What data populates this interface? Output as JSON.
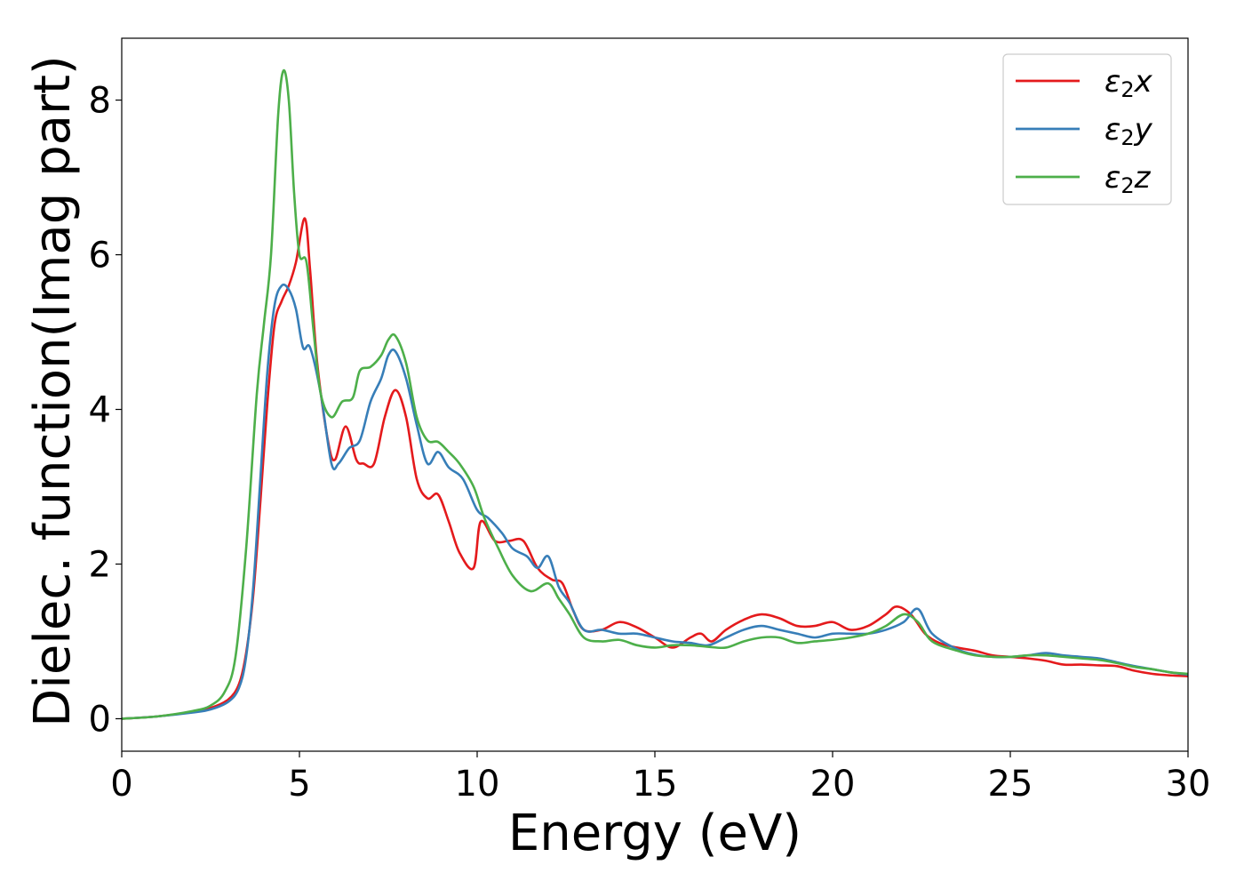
{
  "chart_data": {
    "type": "line",
    "title": "",
    "xlabel": "Energy (eV)",
    "ylabel": "Dielec. function(Imag part)",
    "xlim": [
      0,
      30
    ],
    "ylim": [
      -0.42,
      8.8
    ],
    "xticks": [
      0,
      5,
      10,
      15,
      20,
      25,
      30
    ],
    "xtick_labels": [
      "0",
      "5",
      "10",
      "15",
      "20",
      "25",
      "30"
    ],
    "yticks": [
      0,
      2,
      4,
      6,
      8
    ],
    "ytick_labels": [
      "0",
      "2",
      "4",
      "6",
      "8"
    ],
    "grid": false,
    "legend_position": "top-right",
    "series": [
      {
        "name": "ε2x",
        "legend": {
          "base": "ε",
          "sub": "2",
          "suffix": "x"
        },
        "color": "#e41a1c",
        "x": [
          0,
          1,
          2,
          2.5,
          3.0,
          3.3,
          3.5,
          3.7,
          3.9,
          4.1,
          4.3,
          4.5,
          4.7,
          4.9,
          5.15,
          5.3,
          5.5,
          5.8,
          6.0,
          6.3,
          6.6,
          6.8,
          7.1,
          7.4,
          7.7,
          8.0,
          8.3,
          8.6,
          8.9,
          9.2,
          9.5,
          9.9,
          10.1,
          10.5,
          10.9,
          11.3,
          11.7,
          12.1,
          12.4,
          12.7,
          13.0,
          13.5,
          14.0,
          14.5,
          15.0,
          15.5,
          16.0,
          16.3,
          16.6,
          17.0,
          17.5,
          18.0,
          18.5,
          19.0,
          19.5,
          20.0,
          20.5,
          21.0,
          21.5,
          21.8,
          22.2,
          22.6,
          23.0,
          23.5,
          24.0,
          24.5,
          25.0,
          25.5,
          26.0,
          26.5,
          27.0,
          27.5,
          28.0,
          28.5,
          29.0,
          29.5,
          30.0
        ],
        "y": [
          0,
          0.03,
          0.09,
          0.14,
          0.25,
          0.45,
          0.85,
          1.6,
          2.8,
          4.1,
          5.1,
          5.4,
          5.6,
          5.9,
          6.47,
          5.8,
          4.6,
          3.6,
          3.35,
          3.78,
          3.35,
          3.3,
          3.3,
          3.9,
          4.25,
          3.9,
          3.1,
          2.85,
          2.9,
          2.55,
          2.15,
          1.95,
          2.55,
          2.3,
          2.3,
          2.3,
          1.95,
          1.8,
          1.75,
          1.4,
          1.15,
          1.15,
          1.25,
          1.18,
          1.05,
          0.92,
          1.05,
          1.1,
          1.0,
          1.15,
          1.28,
          1.35,
          1.3,
          1.2,
          1.2,
          1.25,
          1.15,
          1.2,
          1.35,
          1.45,
          1.35,
          1.1,
          0.98,
          0.92,
          0.88,
          0.82,
          0.8,
          0.78,
          0.75,
          0.7,
          0.7,
          0.69,
          0.68,
          0.62,
          0.58,
          0.56,
          0.55
        ]
      },
      {
        "name": "ε2y",
        "legend": {
          "base": "ε",
          "sub": "2",
          "suffix": "y"
        },
        "color": "#377eb8",
        "x": [
          0,
          1,
          2,
          2.5,
          3.0,
          3.3,
          3.5,
          3.7,
          3.9,
          4.1,
          4.3,
          4.5,
          4.7,
          4.9,
          5.1,
          5.3,
          5.6,
          5.9,
          6.1,
          6.4,
          6.7,
          7.0,
          7.3,
          7.5,
          7.7,
          8.0,
          8.3,
          8.6,
          8.9,
          9.2,
          9.6,
          10.0,
          10.3,
          10.7,
          11.0,
          11.4,
          11.7,
          12.0,
          12.3,
          12.6,
          13.0,
          13.5,
          14.0,
          14.5,
          15.0,
          15.5,
          16.0,
          16.5,
          17.0,
          17.5,
          18.0,
          18.5,
          19.0,
          19.5,
          20.0,
          20.5,
          21.0,
          21.5,
          22.0,
          22.4,
          22.8,
          23.5,
          24.0,
          24.5,
          25.0,
          25.5,
          26.0,
          26.5,
          27.0,
          27.5,
          28.0,
          28.5,
          29.0,
          29.5,
          30.0
        ],
        "y": [
          0,
          0.03,
          0.08,
          0.12,
          0.22,
          0.4,
          0.8,
          1.7,
          3.1,
          4.5,
          5.35,
          5.6,
          5.55,
          5.3,
          4.8,
          4.8,
          4.2,
          3.3,
          3.3,
          3.5,
          3.6,
          4.1,
          4.4,
          4.7,
          4.75,
          4.4,
          3.8,
          3.3,
          3.45,
          3.25,
          3.1,
          2.7,
          2.6,
          2.4,
          2.2,
          2.1,
          1.95,
          2.1,
          1.7,
          1.5,
          1.15,
          1.15,
          1.1,
          1.1,
          1.05,
          1.0,
          0.98,
          0.95,
          1.05,
          1.15,
          1.2,
          1.15,
          1.1,
          1.05,
          1.1,
          1.1,
          1.1,
          1.15,
          1.25,
          1.42,
          1.1,
          0.9,
          0.83,
          0.8,
          0.8,
          0.82,
          0.85,
          0.82,
          0.8,
          0.78,
          0.73,
          0.68,
          0.64,
          0.6,
          0.57
        ]
      },
      {
        "name": "ε2z",
        "legend": {
          "base": "ε",
          "sub": "2",
          "suffix": "z"
        },
        "color": "#4daf4a",
        "x": [
          0,
          1,
          2,
          2.5,
          2.9,
          3.2,
          3.5,
          3.8,
          4.0,
          4.2,
          4.4,
          4.55,
          4.7,
          4.85,
          5.0,
          5.2,
          5.4,
          5.6,
          5.9,
          6.2,
          6.5,
          6.7,
          7.0,
          7.3,
          7.5,
          7.7,
          8.0,
          8.3,
          8.6,
          8.9,
          9.2,
          9.5,
          9.9,
          10.2,
          10.6,
          11.0,
          11.5,
          12.0,
          12.3,
          12.6,
          13.0,
          13.5,
          14.0,
          14.5,
          15.0,
          15.5,
          16.0,
          16.5,
          17.0,
          17.5,
          18.0,
          18.5,
          19.0,
          19.5,
          20.0,
          20.5,
          21.0,
          21.5,
          22.0,
          22.4,
          22.8,
          23.5,
          24.0,
          24.5,
          25.0,
          25.5,
          26.0,
          26.5,
          27.0,
          27.5,
          28.0,
          28.5,
          29.0,
          29.5,
          30.0
        ],
        "y": [
          0,
          0.03,
          0.1,
          0.17,
          0.35,
          0.8,
          2.2,
          4.2,
          5.1,
          6.0,
          7.8,
          8.38,
          8.0,
          6.8,
          6.0,
          5.9,
          5.0,
          4.2,
          3.9,
          4.1,
          4.15,
          4.5,
          4.55,
          4.7,
          4.9,
          4.95,
          4.6,
          3.9,
          3.6,
          3.58,
          3.45,
          3.3,
          3.0,
          2.6,
          2.2,
          1.85,
          1.65,
          1.75,
          1.55,
          1.35,
          1.05,
          1.0,
          1.02,
          0.95,
          0.92,
          0.95,
          0.95,
          0.93,
          0.92,
          1.0,
          1.05,
          1.05,
          0.98,
          1.0,
          1.02,
          1.05,
          1.1,
          1.2,
          1.35,
          1.25,
          1.0,
          0.88,
          0.82,
          0.8,
          0.8,
          0.82,
          0.82,
          0.8,
          0.78,
          0.76,
          0.72,
          0.67,
          0.64,
          0.6,
          0.58
        ]
      }
    ]
  }
}
